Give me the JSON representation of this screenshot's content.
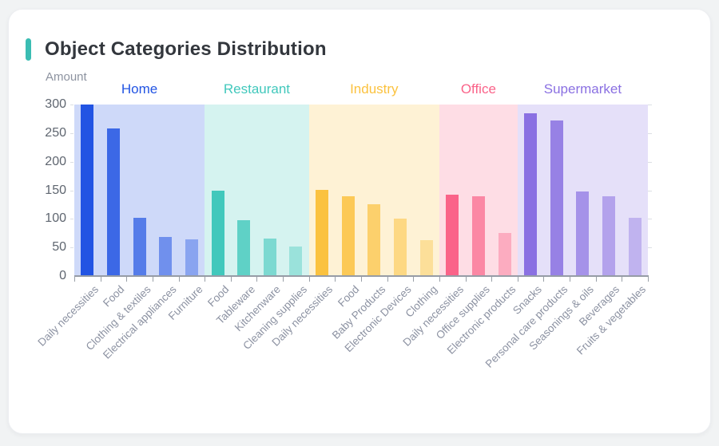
{
  "card": {
    "accent_color": "#3bbdb3"
  },
  "chart_data": {
    "type": "bar",
    "title": "Object Categories Distribution",
    "ylabel": "Amount",
    "xlabel": "",
    "ylim": [
      0,
      300
    ],
    "yticks": [
      0,
      50,
      100,
      150,
      200,
      250,
      300
    ],
    "grid": false,
    "legend_position": "none",
    "group_band_alpha": 0.22,
    "groups": [
      {
        "name": "Home",
        "color": "#2254e3",
        "categories": [
          "Daily necessities",
          "Food",
          "Clothing & textiles",
          "Electrical appliances",
          "Furniture"
        ],
        "values": [
          300,
          258,
          102,
          69,
          64
        ]
      },
      {
        "name": "Restaurant",
        "color": "#41c8bc",
        "categories": [
          "Food",
          "Tableware",
          "Kitchenware",
          "Cleaning supplies"
        ],
        "values": [
          149,
          97,
          65,
          51
        ]
      },
      {
        "name": "Industry",
        "color": "#fbc23f",
        "categories": [
          "Daily necessities",
          "Food",
          "Baby Products",
          "Electronic Devices",
          "Clothing"
        ],
        "values": [
          151,
          139,
          126,
          100,
          63
        ]
      },
      {
        "name": "Office",
        "color": "#fa6389",
        "categories": [
          "Daily necessities",
          "Office supplies",
          "Electronic products"
        ],
        "values": [
          142,
          139,
          75
        ]
      },
      {
        "name": "Supermarket",
        "color": "#8a70e2",
        "categories": [
          "Snacks",
          "Personal care products",
          "Seasonings & oils",
          "Beverages",
          "Fruits & vegetables"
        ],
        "values": [
          285,
          272,
          148,
          140,
          102
        ]
      }
    ]
  }
}
